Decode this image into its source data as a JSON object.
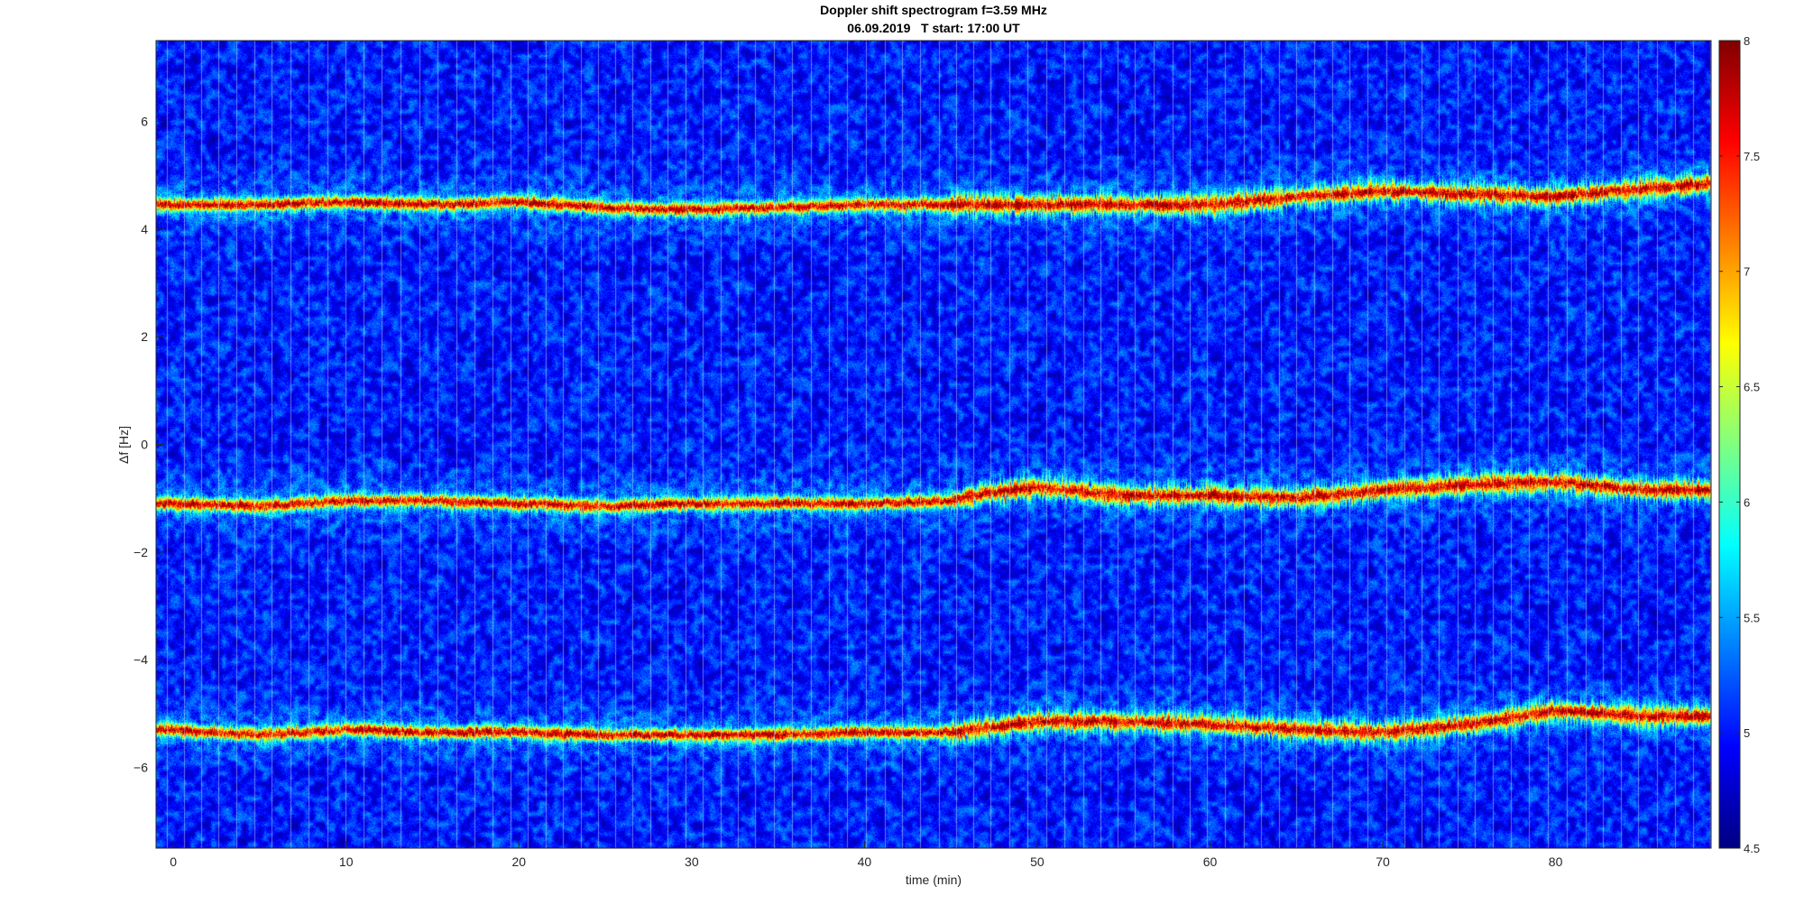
{
  "chart_data": {
    "type": "heatmap",
    "title": "Doppler shift spectrogram f=3.59 MHz",
    "subtitle": "06.09.2019   T start: 17:00 UT",
    "xlabel": "time (min)",
    "ylabel": "Δf [Hz]",
    "xlim": [
      -1,
      89
    ],
    "ylim": [
      -7.5,
      7.5
    ],
    "x_ticks": [
      0,
      10,
      20,
      30,
      40,
      50,
      60,
      70,
      80
    ],
    "y_ticks": [
      -6,
      -4,
      -2,
      0,
      2,
      4,
      6
    ],
    "colorbar": {
      "range": [
        4.5,
        8
      ],
      "ticks": [
        4.5,
        5,
        5.5,
        6,
        6.5,
        7,
        7.5,
        8
      ],
      "colormap": "jet"
    },
    "grid": false,
    "background_level": 5.0,
    "traces": [
      {
        "x": [
          0,
          5,
          10,
          15,
          20,
          25,
          30,
          35,
          40,
          45,
          50,
          55,
          60,
          65,
          70,
          75,
          80,
          85,
          89
        ],
        "y": [
          4.45,
          4.45,
          4.5,
          4.45,
          4.5,
          4.4,
          4.35,
          4.4,
          4.45,
          4.45,
          4.45,
          4.45,
          4.45,
          4.6,
          4.7,
          4.65,
          4.6,
          4.75,
          4.85
        ],
        "level": 7.8
      },
      {
        "x": [
          0,
          5,
          10,
          15,
          20,
          25,
          30,
          35,
          40,
          45,
          47,
          50,
          55,
          60,
          65,
          70,
          75,
          80,
          85,
          89
        ],
        "y": [
          -1.1,
          -1.15,
          -1.05,
          -1.05,
          -1.1,
          -1.15,
          -1.1,
          -1.1,
          -1.1,
          -1.05,
          -0.9,
          -0.8,
          -0.95,
          -0.95,
          -1.0,
          -0.85,
          -0.75,
          -0.7,
          -0.85,
          -0.85
        ],
        "level": 7.8
      },
      {
        "x": [
          0,
          5,
          10,
          15,
          20,
          25,
          30,
          35,
          40,
          45,
          50,
          55,
          60,
          65,
          70,
          75,
          80,
          85,
          89
        ],
        "y": [
          -5.3,
          -5.4,
          -5.3,
          -5.35,
          -5.35,
          -5.4,
          -5.4,
          -5.4,
          -5.35,
          -5.35,
          -5.15,
          -5.15,
          -5.2,
          -5.3,
          -5.35,
          -5.2,
          -4.95,
          -5.05,
          -5.05
        ],
        "level": 7.8
      }
    ]
  }
}
